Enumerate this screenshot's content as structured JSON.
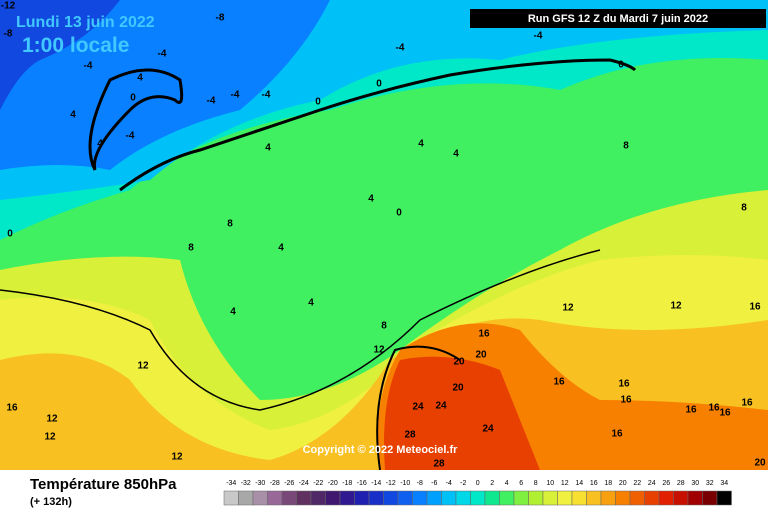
{
  "header": {
    "date": "Lundi 13 juin 2022",
    "time": "1:00 locale"
  },
  "run_banner": "Run GFS 12 Z du Mardi 7 juin 2022",
  "copyright": "Copyright © 2022 Meteociel.fr",
  "footer": {
    "title": "Température 850hPa",
    "subtitle": "(+ 132h)"
  },
  "legend": {
    "ticks": [
      -34,
      -32,
      -30,
      -28,
      -26,
      -24,
      -22,
      -20,
      -18,
      -16,
      -14,
      -12,
      -10,
      -8,
      -6,
      -4,
      -2,
      0,
      2,
      4,
      6,
      8,
      10,
      12,
      14,
      16,
      18,
      20,
      22,
      24,
      26,
      28,
      30,
      32,
      34
    ],
    "colors": [
      "#c8c8c8",
      "#a8a8a8",
      "#a890a8",
      "#986898",
      "#784878",
      "#603060",
      "#502868",
      "#401870",
      "#301890",
      "#2020b0",
      "#1830c8",
      "#1048e0",
      "#1060f0",
      "#0880ff",
      "#00a0ff",
      "#00c0f8",
      "#00d8e8",
      "#00e8c8",
      "#10e890",
      "#40f060",
      "#80f040",
      "#b0f030",
      "#d8f038",
      "#f0f040",
      "#f8e030",
      "#f8c020",
      "#f8a010",
      "#f88000",
      "#f06000",
      "#e84000",
      "#e02000",
      "#c81000",
      "#a00000",
      "#780000",
      "#000000"
    ]
  },
  "contour_labels": [
    -12,
    -8,
    -8,
    -4,
    -4,
    -4,
    -4,
    4,
    0,
    -4,
    -4,
    -4,
    4,
    -4,
    4,
    0,
    0,
    0,
    4,
    4,
    4,
    8,
    4,
    0,
    8,
    0,
    8,
    4,
    8,
    4,
    4,
    8,
    12,
    12,
    16,
    16,
    12,
    20,
    20,
    12,
    20,
    16,
    16,
    16,
    16,
    24,
    24,
    16,
    16,
    16,
    16,
    12,
    24,
    28,
    12,
    16,
    12,
    28,
    20
  ]
}
